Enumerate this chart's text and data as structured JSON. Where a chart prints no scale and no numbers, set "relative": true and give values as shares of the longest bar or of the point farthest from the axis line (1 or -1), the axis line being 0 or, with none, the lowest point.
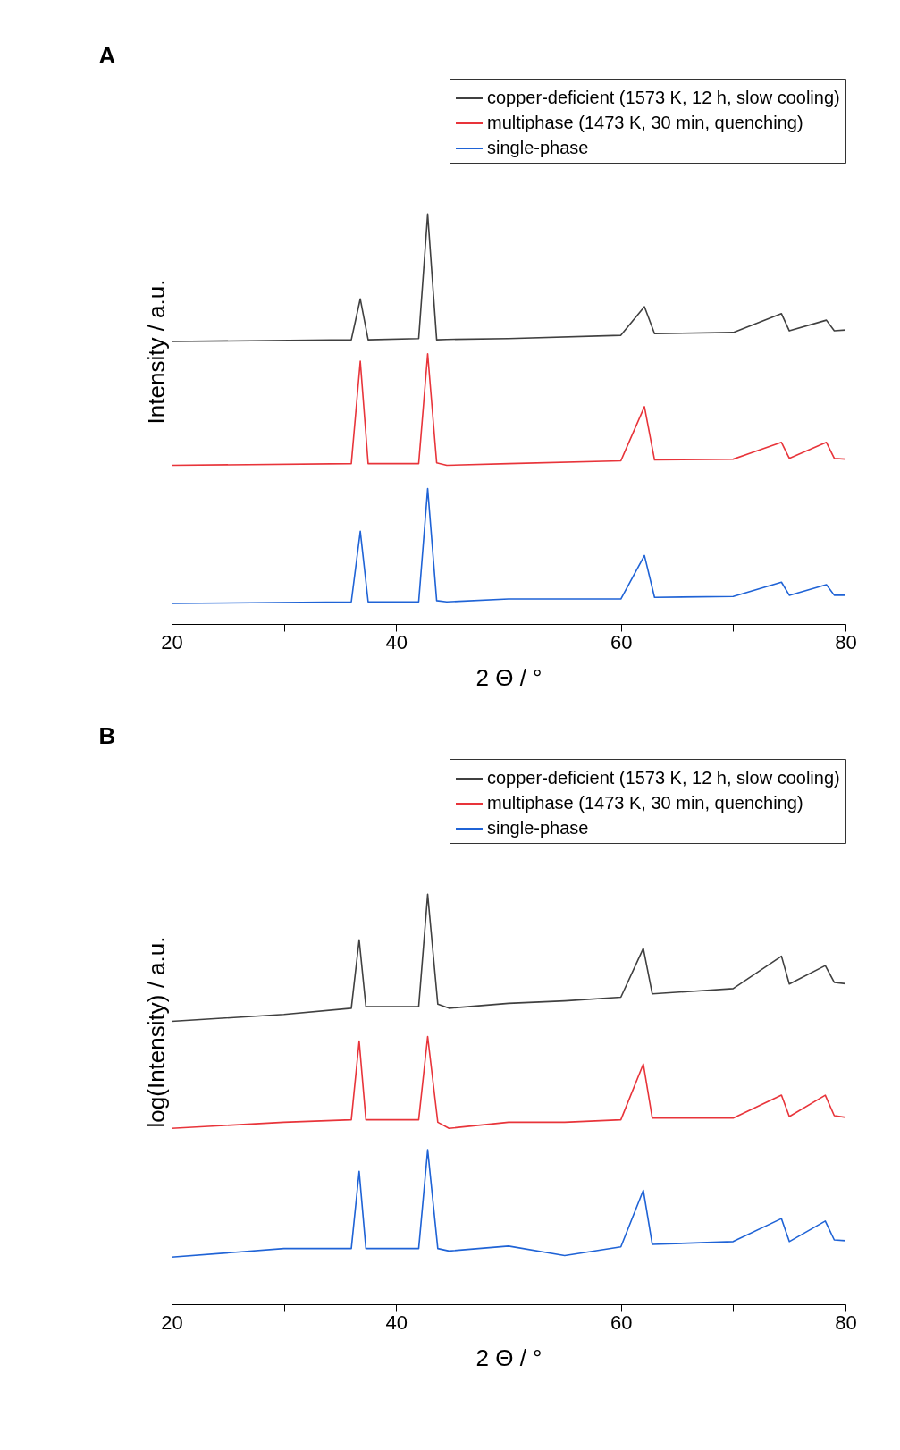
{
  "chart_data": [
    {
      "type": "line",
      "relative": true,
      "annotations": [
        "A"
      ],
      "xlabel": "2 Θ / °",
      "ylabel": "Intensity / a.u.",
      "xlim": [
        20,
        80
      ],
      "xticks": [
        20,
        {
          "value": 30,
          "label": null
        },
        40,
        {
          "value": 50,
          "label": null
        },
        60,
        {
          "value": 70,
          "label": null
        },
        80
      ],
      "legend": "top right",
      "tick_labels": "x",
      "x": [
        20,
        36,
        36.8,
        37.5,
        42,
        42.8,
        43.6,
        44.5,
        50,
        60,
        62.1,
        63,
        70,
        74.3,
        75,
        78.3,
        79,
        80
      ],
      "series": [
        {
          "name": "copper-deficient (1573 K, 12 h, slow cooling)",
          "color": "#404040",
          "values": [
            0.689,
            0.693,
            0.793,
            0.693,
            0.696,
            1.0,
            0.693,
            0.694,
            0.696,
            0.704,
            0.774,
            0.708,
            0.711,
            0.757,
            0.715,
            0.741,
            0.715,
            0.717
          ]
        },
        {
          "name": "multiphase (1473 K, 30 min, quenching)",
          "color": "#e8343a",
          "values": [
            0.387,
            0.391,
            0.641,
            0.391,
            0.391,
            0.659,
            0.393,
            0.387,
            0.391,
            0.398,
            0.53,
            0.4,
            0.402,
            0.443,
            0.404,
            0.443,
            0.404,
            0.402
          ]
        },
        {
          "name": "single-phase",
          "color": "#1f63d6",
          "values": [
            0.05,
            0.054,
            0.226,
            0.054,
            0.054,
            0.33,
            0.057,
            0.054,
            0.061,
            0.061,
            0.167,
            0.065,
            0.067,
            0.102,
            0.07,
            0.096,
            0.07,
            0.07
          ]
        }
      ]
    },
    {
      "type": "line",
      "relative": true,
      "annotations": [
        "B"
      ],
      "xlabel": "2 Θ / °",
      "ylabel": "log(Intensity) / a.u.",
      "xlim": [
        20,
        80
      ],
      "xticks": [
        20,
        {
          "value": 30,
          "label": null
        },
        40,
        {
          "value": 50,
          "label": null
        },
        60,
        {
          "value": 70,
          "label": null
        },
        80
      ],
      "legend": "top right",
      "tick_labels": "x",
      "x": [
        20,
        30,
        36,
        36.7,
        37.3,
        42,
        42.8,
        43.7,
        44.7,
        50,
        55,
        60,
        62.0,
        62.8,
        70,
        74.3,
        75,
        78.2,
        79,
        80
      ],
      "series": [
        {
          "name": "copper-deficient (1573 K, 12 h, slow cooling)",
          "color": "#404040",
          "values": [
            0.69,
            0.707,
            0.722,
            0.889,
            0.726,
            0.726,
            1.0,
            0.732,
            0.722,
            0.734,
            0.74,
            0.749,
            0.868,
            0.757,
            0.77,
            0.849,
            0.781,
            0.826,
            0.785,
            0.782
          ]
        },
        {
          "name": "multiphase (1473 K, 30 min, quenching)",
          "color": "#e8343a",
          "values": [
            0.429,
            0.444,
            0.45,
            0.642,
            0.45,
            0.45,
            0.653,
            0.444,
            0.429,
            0.444,
            0.444,
            0.45,
            0.586,
            0.454,
            0.454,
            0.51,
            0.458,
            0.51,
            0.46,
            0.456
          ]
        },
        {
          "name": "single-phase",
          "color": "#1f63d6",
          "values": [
            0.115,
            0.136,
            0.136,
            0.324,
            0.136,
            0.136,
            0.377,
            0.136,
            0.13,
            0.142,
            0.119,
            0.14,
            0.278,
            0.146,
            0.153,
            0.209,
            0.153,
            0.203,
            0.157,
            0.155
          ]
        }
      ]
    }
  ]
}
